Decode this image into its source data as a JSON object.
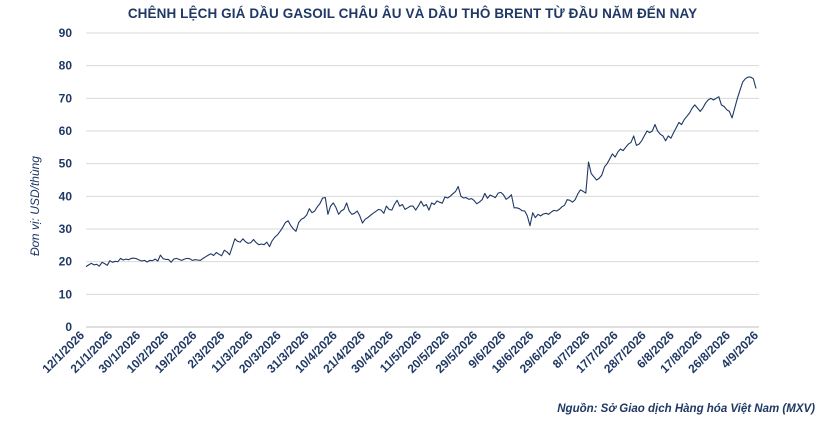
{
  "chart_data": {
    "type": "line",
    "title": "CHÊNH LỆCH GIÁ DẦU GASOIL CHÂU ÂU VÀ DẦU THÔ BRENT TỪ ĐẦU NĂM ĐẾN NAY",
    "ylabel": "Đơn vị: USD/thùng",
    "source": "Nguồn: Sở Giao dịch Hàng hóa Việt Nam (MXV)",
    "ylim": [
      0,
      90
    ],
    "yticks": [
      0,
      10,
      20,
      30,
      40,
      50,
      60,
      70,
      80,
      90
    ],
    "grid": true,
    "line_color": "#1f3864",
    "x_tick_labels": [
      "12/1/2026",
      "21/1/2026",
      "30/1/2026",
      "10/2/2026",
      "19/2/2026",
      "2/3/2026",
      "11/3/2026",
      "20/3/2026",
      "31/3/2026",
      "10/4/2026",
      "21/4/2026",
      "30/4/2026",
      "11/5/2026",
      "20/5/2026",
      "29/5/2026",
      "9/6/2026",
      "18/6/2026",
      "29/6/2026",
      "8/7/2026",
      "17/7/2026",
      "28/7/2026",
      "6/8/2026",
      "17/8/2026",
      "26/8/2026",
      "4/9/2026"
    ],
    "values": [
      18.5,
      19.0,
      19.5,
      19.0,
      19.2,
      18.6,
      19.8,
      19.4,
      18.9,
      20.3,
      19.8,
      20.1,
      20.0,
      21.0,
      20.5,
      20.8,
      20.6,
      21.0,
      21.1,
      20.9,
      20.5,
      20.2,
      20.4,
      19.9,
      20.4,
      20.3,
      20.8,
      20.2,
      22.0,
      20.9,
      20.7,
      20.7,
      19.8,
      20.8,
      21.0,
      20.7,
      20.4,
      20.8,
      21.0,
      20.9,
      20.4,
      20.6,
      20.5,
      20.4,
      21.0,
      21.5,
      22.0,
      22.4,
      21.9,
      22.8,
      22.3,
      21.8,
      23.5,
      23.0,
      22.1,
      24.5,
      27.0,
      26.2,
      26.0,
      27.0,
      26.1,
      25.6,
      25.8,
      26.8,
      25.8,
      25.2,
      25.4,
      25.2,
      26.0,
      24.6,
      26.4,
      27.5,
      28.2,
      29.3,
      30.5,
      32.0,
      32.5,
      31.1,
      30.0,
      29.3,
      32.0,
      33.0,
      33.4,
      34.3,
      36.2,
      35.0,
      35.5,
      36.8,
      37.8,
      39.5,
      39.6,
      34.5,
      37.0,
      38.0,
      36.6,
      34.5,
      35.5,
      36.0,
      38.0,
      35.5,
      34.5,
      34.8,
      35.5,
      34.0,
      31.8,
      33.0,
      33.5,
      34.2,
      34.8,
      35.4,
      36.0,
      35.8,
      34.8,
      37.0,
      36.0,
      35.8,
      37.5,
      38.8,
      37.0,
      37.5,
      36.0,
      36.5,
      37.0,
      37.0,
      35.8,
      37.0,
      38.5,
      37.0,
      37.5,
      35.8,
      38.0,
      37.5,
      38.6,
      38.2,
      37.9,
      39.8,
      39.5,
      40.0,
      40.8,
      41.5,
      43.0,
      40.0,
      39.5,
      39.6,
      39.1,
      39.3,
      38.7,
      37.7,
      38.3,
      39.0,
      40.9,
      39.4,
      40.4,
      40.0,
      39.6,
      41.0,
      41.2,
      40.5,
      39.1,
      39.6,
      40.5,
      36.5,
      36.5,
      36.2,
      35.6,
      35.5,
      34.0,
      31.0,
      35.0,
      33.5,
      34.5,
      34.0,
      34.6,
      34.8,
      34.5,
      35.2,
      35.7,
      35.5,
      36.0,
      36.8,
      37.3,
      39.0,
      38.8,
      38.2,
      39.0,
      40.8,
      42.0,
      41.5,
      41.0,
      50.5,
      47.0,
      46.0,
      45.0,
      45.5,
      46.5,
      49.0,
      50.0,
      51.5,
      53.0,
      52.0,
      53.5,
      54.5,
      54.0,
      55.0,
      56.0,
      56.5,
      58.5,
      55.6,
      56.0,
      57.0,
      58.5,
      60.0,
      59.5,
      60.0,
      62.0,
      60.0,
      59.0,
      58.5,
      57.0,
      58.5,
      57.8,
      59.5,
      61.0,
      62.6,
      62.0,
      63.5,
      64.5,
      65.5,
      67.0,
      68.0,
      67.0,
      66.0,
      67.0,
      68.5,
      69.5,
      70.0,
      69.5,
      70.0,
      70.5,
      68.0,
      67.5,
      66.5,
      66.0,
      64.0,
      67.0,
      70.0,
      72.5,
      75.0,
      76.0,
      76.5,
      76.5,
      76.0,
      73.0
    ]
  }
}
